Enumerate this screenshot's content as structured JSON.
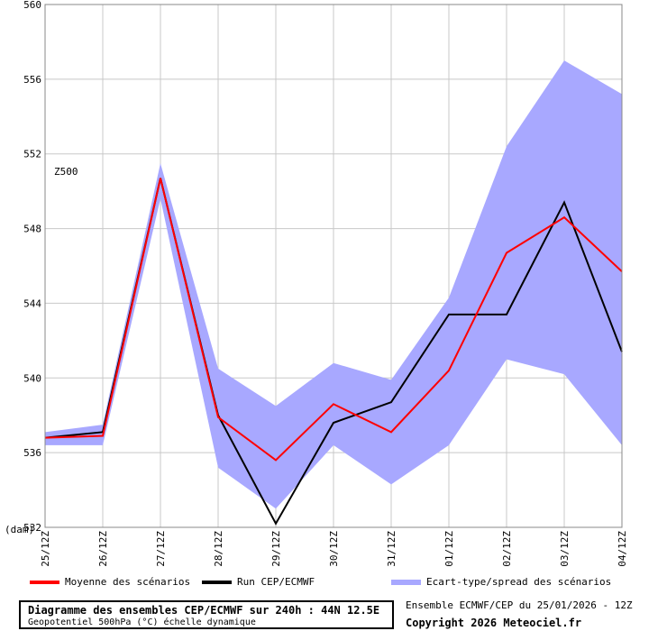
{
  "chart_data": {
    "type": "line",
    "annotation": "Z500",
    "unit_label": "(dam)",
    "ylim": [
      532,
      560
    ],
    "y_ticks": [
      532,
      536,
      540,
      544,
      548,
      552,
      556,
      560
    ],
    "x": [
      "25/12Z",
      "26/12Z",
      "27/12Z",
      "28/12Z",
      "29/12Z",
      "30/12Z",
      "31/12Z",
      "01/12Z",
      "02/12Z",
      "03/12Z",
      "04/12Z"
    ],
    "grid": true,
    "spread_low": [
      536.4,
      536.4,
      549.6,
      535.2,
      533.0,
      536.4,
      534.3,
      536.4,
      541.0,
      540.2,
      536.4
    ],
    "spread_high": [
      537.1,
      537.5,
      551.5,
      540.5,
      538.5,
      540.8,
      539.9,
      544.3,
      552.4,
      557.0,
      555.2
    ],
    "series": [
      {
        "name": "Moyenne des scénarios",
        "color": "#ff0000",
        "values": [
          536.8,
          536.9,
          550.7,
          537.9,
          535.6,
          538.6,
          537.1,
          540.4,
          546.7,
          548.6,
          545.7
        ]
      },
      {
        "name": "Run CEP/ECMWF",
        "color": "#000000",
        "values": [
          536.8,
          537.1,
          550.7,
          538.0,
          532.2,
          537.6,
          538.7,
          543.4,
          543.4,
          549.4,
          541.4
        ]
      }
    ],
    "spread_name": "Ecart-type/spread des scénarios",
    "spread_color": "#a8a8ff"
  },
  "info": {
    "title": "Diagramme des ensembles CEP/ECMWF sur 240h : 44N 12.5E",
    "subtitle": "Geopotentiel 500hPa (°C) échelle dynamique"
  },
  "credit": {
    "run": "Ensemble ECMWF/CEP du 25/01/2026 - 12Z",
    "copyright": "Copyright 2026 Meteociel.fr"
  }
}
